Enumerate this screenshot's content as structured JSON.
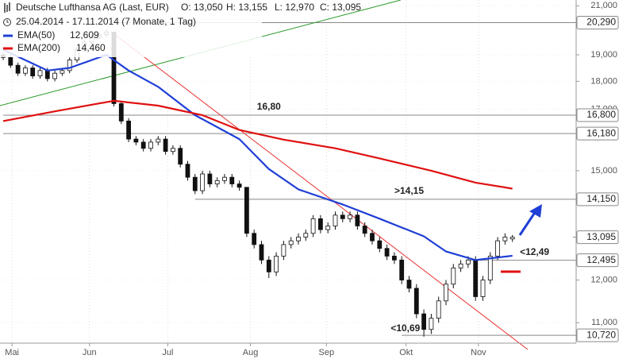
{
  "chart_data": {
    "type": "candlestick",
    "title": "Deutsche Lufthansa AG (Last, EUR)",
    "info": [
      "O: 13,050",
      "H: 13,155",
      "L: 12,970",
      "C: 13,095"
    ],
    "period": "25.04.2014 - 17.11.2014 (7 Monate, 1 Tag)",
    "log_scale": true,
    "grid": true,
    "ylim": [
      10.55,
      21.25
    ],
    "yticks": [
      {
        "value": 21,
        "label": "21,000"
      },
      {
        "value": 19,
        "label": "19,000"
      },
      {
        "value": 18,
        "label": "18,000"
      },
      {
        "value": 17,
        "label": "17,000"
      },
      {
        "value": 15,
        "label": "15,000"
      },
      {
        "value": 12,
        "label": "12,000"
      },
      {
        "value": 11,
        "label": "11,000"
      }
    ],
    "xticks": [
      {
        "value": 1.2,
        "label": "Mai"
      },
      {
        "value": 11.7,
        "label": "Jun"
      },
      {
        "value": 22.3,
        "label": "Jul"
      },
      {
        "value": 33.5,
        "label": "Aug"
      },
      {
        "value": 43.8,
        "label": "Sep"
      },
      {
        "value": 54.6,
        "label": "Okt"
      },
      {
        "value": 64.4,
        "label": "Nov"
      }
    ],
    "open": [
      19.0,
      18.9,
      18.6,
      18.3,
      18.5,
      18.2,
      18.4,
      18.1,
      18.3,
      18.4,
      18.8,
      19.2,
      19.5,
      19.7,
      19.8,
      19.9,
      17.2,
      16.6,
      16.0,
      15.9,
      15.7,
      15.9,
      16.0,
      15.6,
      15.7,
      15.2,
      14.8,
      14.4,
      14.9,
      14.6,
      14.7,
      14.8,
      14.6,
      14.5,
      13.2,
      12.9,
      12.5,
      12.2,
      12.6,
      12.9,
      13.0,
      13.1,
      13.2,
      13.6,
      13.3,
      13.4,
      13.7,
      13.6,
      13.7,
      13.4,
      13.2,
      13.0,
      12.8,
      12.6,
      12.5,
      12.0,
      11.8,
      11.2,
      10.85,
      11.1,
      11.5,
      11.9,
      12.3,
      12.4,
      12.5,
      11.6,
      12.0,
      12.6,
      13.0,
      13.05
    ],
    "high": [
      19.1,
      19.0,
      18.7,
      18.6,
      18.6,
      18.5,
      18.5,
      18.4,
      18.5,
      18.9,
      19.3,
      19.6,
      19.8,
      19.9,
      20.0,
      19.9,
      17.3,
      16.7,
      16.1,
      16.0,
      16.0,
      16.1,
      16.1,
      15.8,
      15.8,
      15.3,
      14.9,
      15.0,
      15.0,
      14.8,
      14.9,
      14.9,
      14.7,
      14.5,
      13.3,
      13.0,
      12.6,
      12.7,
      13.0,
      13.1,
      13.2,
      13.3,
      13.7,
      13.7,
      13.5,
      13.8,
      13.8,
      13.8,
      13.8,
      13.5,
      13.3,
      13.1,
      12.9,
      12.7,
      12.6,
      12.1,
      11.9,
      11.3,
      11.2,
      11.6,
      12.0,
      12.4,
      12.5,
      12.6,
      12.6,
      12.1,
      12.7,
      13.1,
      13.2,
      13.155
    ],
    "low": [
      18.8,
      18.5,
      18.2,
      18.2,
      18.1,
      18.1,
      18.0,
      18.0,
      18.2,
      18.3,
      18.7,
      19.1,
      19.4,
      19.6,
      19.7,
      17.1,
      16.5,
      15.9,
      15.8,
      15.6,
      15.6,
      15.8,
      15.5,
      15.5,
      15.1,
      14.7,
      14.3,
      14.3,
      14.5,
      14.5,
      14.6,
      14.5,
      14.4,
      13.1,
      12.8,
      12.4,
      12.05,
      12.1,
      12.5,
      12.8,
      12.9,
      13.0,
      13.1,
      13.2,
      13.2,
      13.3,
      13.5,
      13.5,
      13.3,
      13.1,
      12.9,
      12.7,
      12.5,
      12.4,
      11.9,
      11.7,
      11.1,
      10.69,
      10.75,
      11.0,
      11.4,
      11.8,
      12.2,
      12.3,
      11.5,
      11.5,
      11.9,
      12.5,
      12.9,
      12.97
    ],
    "close": [
      18.9,
      18.6,
      18.3,
      18.5,
      18.2,
      18.4,
      18.1,
      18.3,
      18.4,
      18.8,
      19.2,
      19.5,
      19.7,
      19.8,
      19.9,
      17.2,
      16.6,
      16.0,
      15.9,
      15.7,
      15.9,
      16.0,
      15.6,
      15.7,
      15.2,
      14.8,
      14.4,
      14.9,
      14.6,
      14.7,
      14.8,
      14.6,
      14.5,
      13.2,
      12.9,
      12.5,
      12.2,
      12.6,
      12.9,
      13.0,
      13.1,
      13.2,
      13.6,
      13.3,
      13.4,
      13.7,
      13.6,
      13.7,
      13.4,
      13.2,
      13.0,
      12.8,
      12.6,
      12.5,
      12.0,
      11.8,
      11.2,
      10.85,
      11.1,
      11.5,
      11.9,
      12.3,
      12.4,
      12.5,
      11.6,
      12.0,
      12.6,
      13.0,
      13.1,
      13.095
    ],
    "series": [
      {
        "name": "EMA(50)",
        "color": "#1f3fd6",
        "last_label": "12,609",
        "x": [
          0,
          6,
          9,
          14,
          17,
          21,
          26,
          32,
          36,
          40,
          46,
          51,
          57,
          60,
          64,
          69
        ],
        "values": [
          19.2,
          18.4,
          18.5,
          19.0,
          18.4,
          17.8,
          16.8,
          16.0,
          15.05,
          14.44,
          14.0,
          13.6,
          13.12,
          12.72,
          12.5,
          12.609
        ]
      },
      {
        "name": "EMA(200)",
        "color": "#e01010",
        "last_label": "14,460",
        "x": [
          0,
          7,
          15,
          21,
          27,
          32,
          38,
          45,
          51,
          58,
          64,
          69
        ],
        "values": [
          16.6,
          16.93,
          17.3,
          17.13,
          16.8,
          16.3,
          15.98,
          15.7,
          15.38,
          15.0,
          14.64,
          14.46
        ]
      }
    ],
    "levels": [
      {
        "value": 20.29,
        "label": "20,290",
        "start": 15
      },
      {
        "value": 16.8,
        "label": "16,800",
        "start": 0
      },
      {
        "value": 16.18,
        "label": "16,180",
        "start": 0
      },
      {
        "value": 14.15,
        "label": "14,150",
        "start": 26
      },
      {
        "value": 12.495,
        "label": "12,495",
        "start": 63
      },
      {
        "value": 10.72,
        "label": "10,720",
        "start": 54
      }
    ],
    "price_marker": {
      "value": 13.095,
      "label": "13,095"
    },
    "annotations": [
      {
        "text": "16,80",
        "x": 36,
        "value": 16.8,
        "color": "#777777"
      },
      {
        "text": ">14,15",
        "x": 55,
        "value": 14.15,
        "color": "#777777"
      },
      {
        "text": "<12,49",
        "x": 72,
        "value": 12.49,
        "color": "#e01010"
      },
      {
        "text": "<10,69",
        "x": 54.5,
        "value": 10.69,
        "color": "#e01010"
      }
    ]
  }
}
